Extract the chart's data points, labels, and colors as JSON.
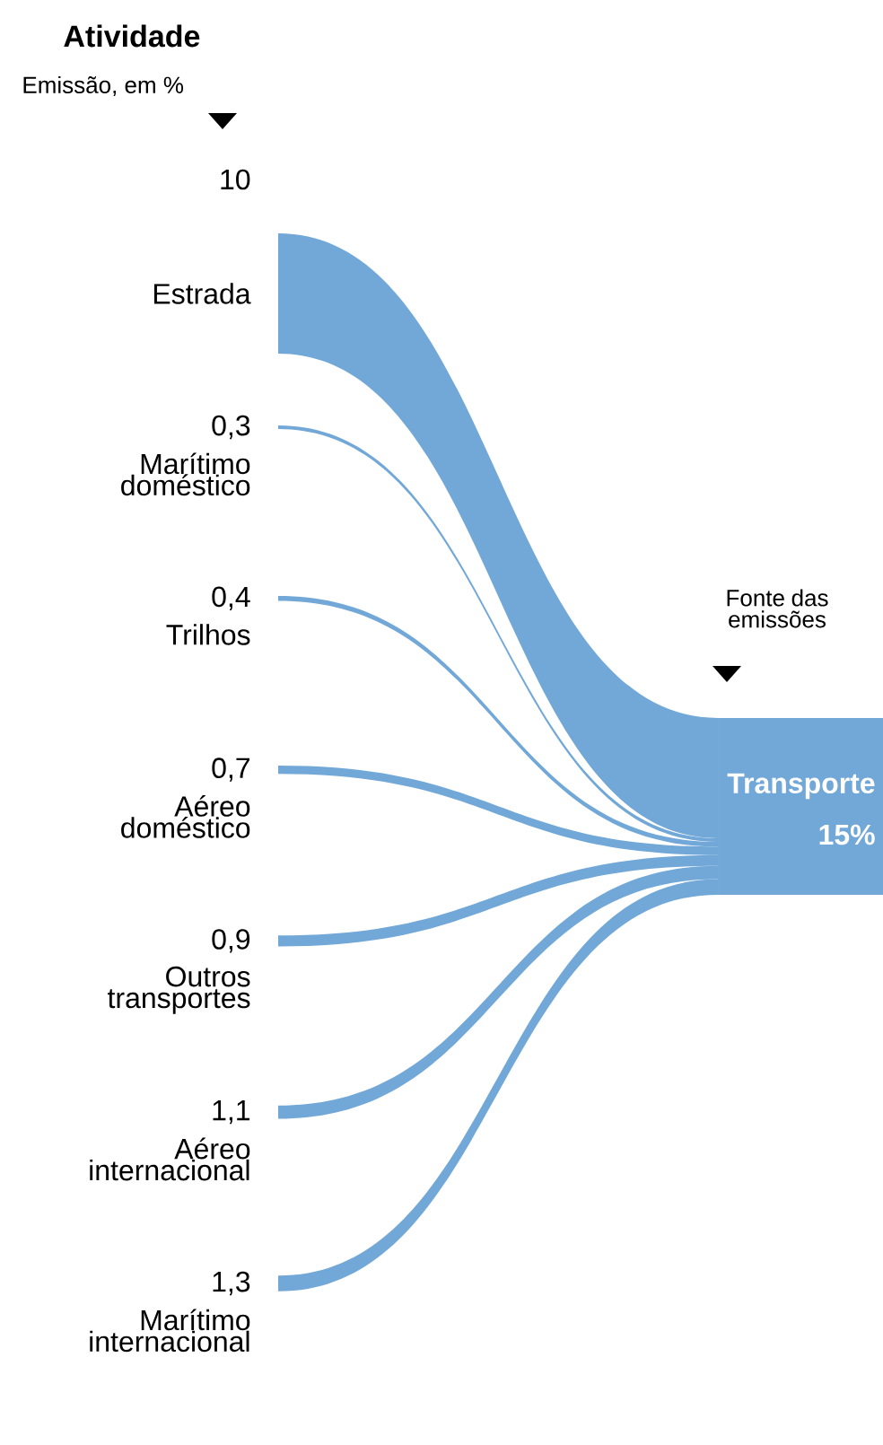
{
  "chart_data": {
    "type": "other",
    "title": "Atividade",
    "subtitle": "Emissão, em %",
    "categories": [
      "Estrada",
      "Marítimo doméstico",
      "Trilhos",
      "Aéreo doméstico",
      "Outros transportes",
      "Aéreo internacional",
      "Marítimo internacional"
    ],
    "values": [
      10,
      0.3,
      0.4,
      0.7,
      0.9,
      1.1,
      1.3
    ],
    "value_labels": [
      "10",
      "0,3",
      "0,4",
      "0,7",
      "0,9",
      "1,1",
      "1,3"
    ],
    "color": "#72a8d8",
    "annotations": [
      "Fonte das emissões",
      "Transporte",
      "15%"
    ]
  }
}
